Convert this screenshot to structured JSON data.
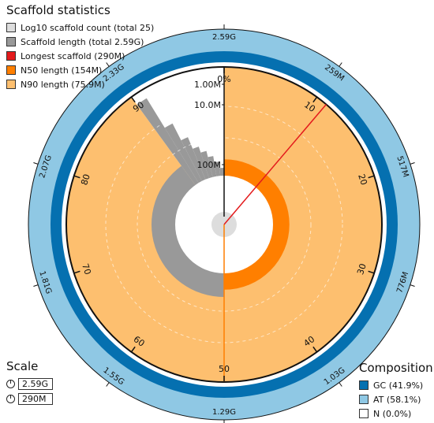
{
  "chart_data": {
    "type": "snail",
    "title": "Scaffold statistics",
    "legend": [
      {
        "label": "Log10 scaffold count (total 25)",
        "color": "#dddddd"
      },
      {
        "label": "Scaffold length (total 2.59G)",
        "color": "#999999"
      },
      {
        "label": "Longest scaffold (290M)",
        "color": "#e31a1c"
      },
      {
        "label": "N50 length (154M)",
        "color": "#ff7f00"
      },
      {
        "label": "N90 length (75.9M)",
        "color": "#fdbf6f"
      }
    ],
    "total_length_gb": 2.59,
    "longest_scaffold_mb": 290,
    "n50_mb": 154,
    "n90_mb": 75.9,
    "n50_percent": 50,
    "n90_percent": 90,
    "longest_percent": 11.2,
    "radial_labels": [
      "1.00M",
      "10.0M",
      "100M"
    ],
    "percent_ticks": [
      "0%",
      "10",
      "20",
      "30",
      "40",
      "50",
      "60",
      "70",
      "80",
      "90"
    ],
    "length_ticks": [
      "2.59G",
      "259M",
      "517M",
      "776M",
      "1.03G",
      "1.29G",
      "1.55G",
      "1.81G",
      "2.07G",
      "2.33G"
    ],
    "composition_title": "Composition",
    "composition": [
      {
        "label": "GC (41.9%)",
        "color": "#0570b0",
        "value": 41.9
      },
      {
        "label": "AT (58.1%)",
        "color": "#8fc8e4",
        "value": 58.1
      },
      {
        "label": "N (0.0%)",
        "color": "#ffffff",
        "value": 0.0
      }
    ],
    "scale_title": "Scale",
    "scale": [
      "2.59G",
      "290M"
    ]
  }
}
